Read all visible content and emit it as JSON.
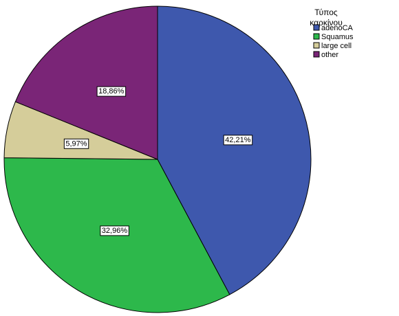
{
  "chart_data": {
    "type": "pie",
    "legend_title": [
      "Τύπος",
      "καρκίνου"
    ],
    "legend_position": "top-right",
    "categories": [
      "adenoCA",
      "Squamus",
      "large cell",
      "other"
    ],
    "values": [
      42.21,
      32.96,
      5.97,
      18.86
    ],
    "labels": [
      "42,21%",
      "32,96%",
      "5,97%",
      "18,86%"
    ],
    "colors": [
      "#3e58ad",
      "#2db84b",
      "#d5cd9a",
      "#7a2577"
    ],
    "start_angle_deg": 0,
    "direction": "clockwise"
  }
}
